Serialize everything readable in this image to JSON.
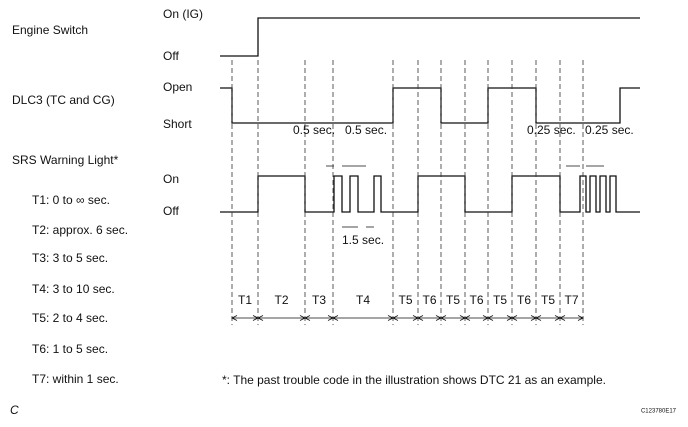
{
  "signals": [
    {
      "name": "Engine Switch",
      "levels": [
        "On (IG)",
        "Off"
      ]
    },
    {
      "name": "DLC3 (TC and CG)",
      "levels": [
        "Open",
        "Short"
      ]
    },
    {
      "name": "SRS Warning Light*",
      "levels": [
        "On",
        "Off"
      ]
    }
  ],
  "intervals": [
    "T1",
    "T2",
    "T3",
    "T4",
    "T5",
    "T6",
    "T5",
    "T6",
    "T5",
    "T6",
    "T5",
    "T7"
  ],
  "annotations": [
    "0.5 sec.",
    "0.5 sec.",
    "1.5 sec.",
    "0.25 sec.",
    "0.25 sec."
  ],
  "legend": [
    "T1: 0 to ∞ sec.",
    "T2: approx. 6 sec.",
    "T3: 3 to 5 sec.",
    "T4: 3 to 10 sec.",
    "T5: 2 to 4 sec.",
    "T6: 1 to 5 sec.",
    "T7: within 1 sec."
  ],
  "note": "*: The past trouble code in the illustration shows DTC 21 as an example.",
  "footer": {
    "left": "C",
    "code": "C123780E17"
  }
}
